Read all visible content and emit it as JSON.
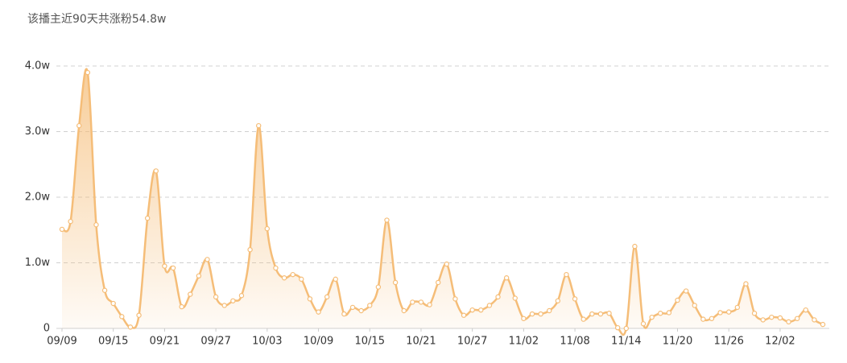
{
  "chart_data": {
    "type": "area-line",
    "title": "该播主近90天共涨粉54.8w",
    "color": "#f5bd78",
    "categories": [
      "09/09",
      null,
      null,
      null,
      null,
      null,
      "09/15",
      null,
      null,
      null,
      null,
      null,
      "09/21",
      null,
      null,
      null,
      null,
      null,
      "09/27",
      null,
      null,
      null,
      null,
      null,
      "10/03",
      null,
      null,
      null,
      null,
      null,
      "10/09",
      null,
      null,
      null,
      null,
      null,
      "10/15",
      null,
      null,
      null,
      null,
      null,
      "10/21",
      null,
      null,
      null,
      null,
      null,
      "10/27",
      null,
      null,
      null,
      null,
      null,
      "11/02",
      null,
      null,
      null,
      null,
      null,
      "11/08",
      null,
      null,
      null,
      null,
      null,
      "11/14",
      null,
      null,
      null,
      null,
      null,
      "11/20",
      null,
      null,
      null,
      null,
      null,
      "11/26",
      null,
      null,
      null,
      null,
      null,
      "12/02",
      null,
      null,
      null,
      null,
      null
    ],
    "values": [
      1.51,
      1.63,
      3.09,
      3.9,
      1.58,
      0.58,
      0.38,
      0.18,
      0.02,
      0.2,
      1.68,
      2.4,
      0.95,
      0.92,
      0.33,
      0.52,
      0.8,
      1.05,
      0.48,
      0.35,
      0.42,
      0.5,
      1.2,
      3.09,
      1.52,
      0.92,
      0.77,
      0.82,
      0.75,
      0.45,
      0.25,
      0.48,
      0.75,
      0.22,
      0.32,
      0.27,
      0.35,
      0.63,
      1.65,
      0.7,
      0.27,
      0.4,
      0.4,
      0.36,
      0.7,
      0.98,
      0.45,
      0.2,
      0.28,
      0.28,
      0.35,
      0.48,
      0.77,
      0.46,
      0.15,
      0.22,
      0.22,
      0.27,
      0.42,
      0.82,
      0.45,
      0.14,
      0.22,
      0.22,
      0.23,
      0.01,
      0.0,
      1.25,
      0.07,
      0.17,
      0.23,
      0.24,
      0.43,
      0.57,
      0.35,
      0.14,
      0.15,
      0.24,
      0.25,
      0.32,
      0.68,
      0.23,
      0.13,
      0.17,
      0.16,
      0.1,
      0.15,
      0.28,
      0.13,
      0.06
    ],
    "ylim": [
      0,
      4
    ],
    "yticks": [
      0,
      {
        "value": 1,
        "label": "1.0w"
      },
      {
        "value": 2,
        "label": "2.0w"
      },
      {
        "value": 3,
        "label": "3.0w"
      },
      {
        "value": 4,
        "label": "4.0w"
      }
    ],
    "grid": true
  }
}
